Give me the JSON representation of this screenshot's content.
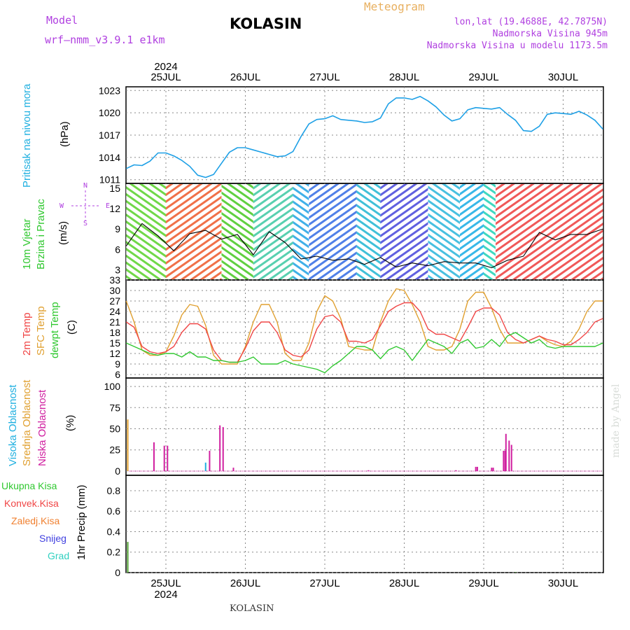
{
  "header": {
    "model_label": "Model",
    "model_value": "wrf–nmm_v3.9.1  e1km",
    "station": "KOLASIN",
    "product": "Meteogram",
    "location_coords": "lon,lat (19.4688E, 42.7875N)",
    "elevation": "Nadmorska Visina 945m",
    "model_elevation": "Nadmorska Visina u modelu 1173.5m"
  },
  "footer": {
    "station": "KOLASIN",
    "credit": "made by Angel"
  },
  "colors": {
    "pressure": "#1ea0e6",
    "temp2m": "#f04646",
    "sfc_temp": "#e0a030",
    "dewpoint": "#30c830",
    "cloud_high": "#20b0e0",
    "cloud_mid": "#e0a030",
    "cloud_low": "#d020a0",
    "precip_total": "#30c830",
    "precip_conv": "#f04646",
    "precip_frz": "#f08030",
    "snow": "#4040e0",
    "hail": "#30d0c0",
    "model_purple": "#b040e0"
  },
  "chart_data": [
    {
      "type": "line",
      "title": "",
      "ylabel": "Pritisak na nivou mora",
      "unit": "(hPa)",
      "yticks": [
        1011,
        1014,
        1017,
        1020,
        1023
      ],
      "ylim": [
        1010.5,
        1023.5
      ],
      "x_dates_top": [
        "25JUL",
        "26JUL",
        "27JUL",
        "28JUL",
        "29JUL",
        "30JUL"
      ],
      "year": "2024",
      "xlim_days": [
        0,
        6.0
      ],
      "series": [
        {
          "key": "pressure",
          "x": [
            0,
            0.1,
            0.2,
            0.3,
            0.4,
            0.5,
            0.6,
            0.7,
            0.8,
            0.9,
            1.0,
            1.1,
            1.2,
            1.3,
            1.4,
            1.5,
            1.6,
            1.7,
            1.8,
            1.9,
            2.0,
            2.1,
            2.2,
            2.3,
            2.4,
            2.5,
            2.6,
            2.7,
            2.8,
            2.9,
            3.0,
            3.1,
            3.2,
            3.3,
            3.4,
            3.5,
            3.6,
            3.7,
            3.8,
            3.9,
            4.0,
            4.1,
            4.2,
            4.3,
            4.4,
            4.5,
            4.6,
            4.7,
            4.8,
            4.9,
            5.0,
            5.1,
            5.2,
            5.3,
            5.4,
            5.5,
            5.6,
            5.7,
            5.8,
            5.9,
            6.0
          ],
          "values": [
            1012.5,
            1013.0,
            1012.9,
            1013.5,
            1014.6,
            1014.6,
            1014.2,
            1013.6,
            1012.8,
            1011.6,
            1011.3,
            1011.7,
            1013.2,
            1014.7,
            1015.3,
            1015.3,
            1015.0,
            1014.7,
            1014.4,
            1014.1,
            1014.2,
            1014.8,
            1016.8,
            1018.5,
            1019.1,
            1019.2,
            1019.6,
            1019.1,
            1019.0,
            1018.9,
            1018.7,
            1018.8,
            1019.3,
            1021.2,
            1022.0,
            1022.0,
            1021.8,
            1022.2,
            1021.6,
            1020.8,
            1019.7,
            1018.9,
            1019.2,
            1020.4,
            1020.7,
            1020.6,
            1020.5,
            1020.7,
            1019.8,
            1019.0,
            1017.6,
            1017.5,
            1018.2,
            1019.8,
            1020.0,
            1019.9,
            1019.8,
            1020.2,
            1019.7,
            1019.0,
            1017.8
          ]
        }
      ]
    },
    {
      "type": "line",
      "title": "",
      "ylabel": "10m Vjetar Brzina i Pravac",
      "unit": "(m/s)",
      "compass": {
        "n": "N",
        "s": "S",
        "w": "W",
        "e": "E"
      },
      "yticks": [
        3,
        6,
        9,
        12,
        15
      ],
      "ylim": [
        1.5,
        15.7
      ],
      "series": [
        {
          "key": "wind_speed",
          "x": [
            0,
            0.2,
            0.4,
            0.6,
            0.8,
            1.0,
            1.2,
            1.4,
            1.6,
            1.8,
            2.0,
            2.2,
            2.4,
            2.6,
            2.8,
            3.0,
            3.2,
            3.4,
            3.6,
            3.8,
            4.0,
            4.2,
            4.4,
            4.6,
            4.8,
            5.0,
            5.2,
            5.4,
            5.6,
            5.8,
            6.0
          ],
          "values": [
            6.5,
            9.8,
            8.0,
            5.8,
            8.3,
            8.8,
            7.5,
            8.2,
            5.2,
            8.6,
            7.0,
            4.6,
            5.0,
            4.4,
            4.6,
            3.8,
            4.8,
            3.4,
            4.0,
            3.6,
            4.2,
            4.0,
            4.0,
            3.3,
            4.4,
            5.0,
            8.5,
            7.4,
            8.2,
            8.2,
            9.0
          ]
        }
      ]
    },
    {
      "type": "line",
      "title": "",
      "ylabel": "2m Temp / SFC Temp / dewpt Temp",
      "unit": "(C)",
      "yticks": [
        6,
        9,
        12,
        15,
        18,
        21,
        24,
        27,
        30,
        33
      ],
      "ylim": [
        5,
        33
      ],
      "series": [
        {
          "key": "temp2m",
          "name": "2m Temp",
          "x": [
            0,
            0.1,
            0.2,
            0.3,
            0.4,
            0.5,
            0.6,
            0.7,
            0.8,
            0.9,
            1.0,
            1.1,
            1.2,
            1.3,
            1.4,
            1.5,
            1.6,
            1.7,
            1.8,
            1.9,
            2.0,
            2.1,
            2.2,
            2.3,
            2.4,
            2.5,
            2.6,
            2.7,
            2.8,
            2.9,
            3.0,
            3.1,
            3.2,
            3.3,
            3.4,
            3.5,
            3.6,
            3.7,
            3.8,
            3.9,
            4.0,
            4.1,
            4.2,
            4.3,
            4.4,
            4.5,
            4.6,
            4.7,
            4.8,
            4.9,
            5.0,
            5.1,
            5.2,
            5.3,
            5.4,
            5.5,
            5.6,
            5.7,
            5.8,
            5.9,
            6.0
          ],
          "values": [
            21,
            19.5,
            14,
            12.5,
            12,
            12.5,
            14,
            18,
            20.5,
            20.5,
            19,
            13,
            10,
            9.5,
            9.5,
            13.5,
            18.5,
            21,
            21,
            18,
            13,
            11.5,
            11,
            13,
            19,
            22.5,
            23,
            21,
            15.5,
            15.5,
            15,
            16,
            20,
            24,
            25.5,
            26.5,
            26.5,
            24,
            19,
            17.5,
            17.5,
            16.5,
            15.5,
            19.5,
            24,
            25,
            25,
            23,
            18,
            16,
            15,
            16,
            17,
            16,
            15.5,
            14.5,
            14.5,
            16,
            18,
            21,
            22
          ]
        },
        {
          "key": "sfc_temp",
          "name": "SFC Temp",
          "x": [
            0,
            0.1,
            0.2,
            0.3,
            0.4,
            0.5,
            0.6,
            0.7,
            0.8,
            0.9,
            1.0,
            1.1,
            1.2,
            1.3,
            1.4,
            1.5,
            1.6,
            1.7,
            1.8,
            1.9,
            2.0,
            2.1,
            2.2,
            2.3,
            2.4,
            2.5,
            2.6,
            2.7,
            2.8,
            2.9,
            3.0,
            3.1,
            3.2,
            3.3,
            3.4,
            3.5,
            3.6,
            3.7,
            3.8,
            3.9,
            4.0,
            4.1,
            4.2,
            4.3,
            4.4,
            4.5,
            4.6,
            4.7,
            4.8,
            4.9,
            5.0,
            5.1,
            5.2,
            5.3,
            5.4,
            5.5,
            5.6,
            5.7,
            5.8,
            5.9,
            6.0
          ],
          "values": [
            27,
            21,
            13,
            11.5,
            11.5,
            12.5,
            17,
            23,
            26,
            25.5,
            20,
            11.5,
            9,
            9,
            9,
            14,
            21,
            26,
            26,
            21,
            12,
            10,
            10,
            15,
            24,
            28.5,
            27,
            22,
            14,
            13.5,
            13,
            13,
            21,
            27,
            30.5,
            30,
            26,
            21,
            14,
            13,
            13,
            14,
            19,
            27,
            29.5,
            29.5,
            25,
            19,
            15,
            15,
            15,
            16,
            17,
            15.5,
            14.5,
            14,
            15.5,
            19,
            24,
            27,
            27
          ]
        },
        {
          "key": "dewpoint",
          "name": "dewpt Temp",
          "x": [
            0,
            0.1,
            0.2,
            0.3,
            0.4,
            0.5,
            0.6,
            0.7,
            0.8,
            0.9,
            1.0,
            1.1,
            1.2,
            1.3,
            1.4,
            1.5,
            1.6,
            1.7,
            1.8,
            1.9,
            2.0,
            2.1,
            2.2,
            2.3,
            2.4,
            2.5,
            2.6,
            2.7,
            2.8,
            2.9,
            3.0,
            3.1,
            3.2,
            3.3,
            3.4,
            3.5,
            3.6,
            3.7,
            3.8,
            3.9,
            4.0,
            4.1,
            4.2,
            4.3,
            4.4,
            4.5,
            4.6,
            4.7,
            4.8,
            4.9,
            5.0,
            5.1,
            5.2,
            5.3,
            5.4,
            5.5,
            5.6,
            5.7,
            5.8,
            5.9,
            6.0
          ],
          "values": [
            15,
            14,
            13,
            12,
            11.5,
            12,
            12,
            11,
            12.5,
            11,
            11,
            10,
            10,
            9.5,
            9.5,
            10,
            11,
            9,
            9,
            9,
            10,
            9,
            8.5,
            8,
            7.5,
            6.5,
            8.5,
            10,
            12,
            14,
            14,
            13,
            10.5,
            13,
            14,
            13,
            10,
            13,
            16,
            15,
            14,
            12,
            15,
            16,
            13.5,
            14,
            16,
            14,
            17,
            18,
            16.5,
            15,
            16,
            14,
            13.5,
            14,
            14,
            14,
            14,
            14,
            15
          ]
        }
      ]
    },
    {
      "type": "bar",
      "title": "",
      "ylabel": "Visoka Oblacnost / Srednja Oblacnost / Niska Oblacnost",
      "unit": "(%)",
      "yticks": [
        0,
        25,
        50,
        75,
        100
      ],
      "ylim": [
        -5,
        110
      ],
      "series": [
        {
          "key": "cloud_mid",
          "name": "Srednja Oblacnost",
          "x": [
            0.02
          ],
          "values": [
            61
          ]
        },
        {
          "key": "cloud_high",
          "name": "Visoka Oblacnost",
          "x": [
            1.0
          ],
          "values": [
            10
          ]
        },
        {
          "key": "cloud_low",
          "name": "Niska Oblacnost",
          "x": [
            0.35,
            0.48,
            0.52,
            1.05,
            1.18,
            1.22,
            1.35,
            3.05,
            4.15,
            4.4,
            4.42,
            4.6,
            4.62,
            4.75,
            4.77,
            4.78,
            4.82,
            4.85
          ],
          "values": [
            34,
            30,
            30,
            24,
            54,
            52,
            4,
            1,
            1,
            5,
            5,
            4,
            4,
            24,
            24,
            44,
            36,
            31
          ]
        }
      ]
    },
    {
      "type": "bar",
      "title": "",
      "ylabel": "1hr Precip",
      "unit": "(mm)",
      "yticks": [
        0,
        0.2,
        0.4,
        0.6,
        0.8
      ],
      "ytick_labels": [
        "0",
        "0.2",
        "0.4",
        "0.6",
        "0.8"
      ],
      "ylim": [
        0,
        0.95
      ],
      "x_dates_bottom": [
        "25JUL",
        "26JUL",
        "27JUL",
        "28JUL",
        "29JUL",
        "30JUL"
      ],
      "year": "2024",
      "legend": [
        "Ukupna Kisa",
        "Konvek.Kisa",
        "Zaledj.Kisa",
        "Snijeg",
        "Grad"
      ],
      "series": [
        {
          "key": "precip_total",
          "name": "Ukupna Kisa",
          "x": [
            0.02,
            4.9
          ],
          "values": [
            0.3,
            0.005
          ]
        }
      ]
    }
  ]
}
